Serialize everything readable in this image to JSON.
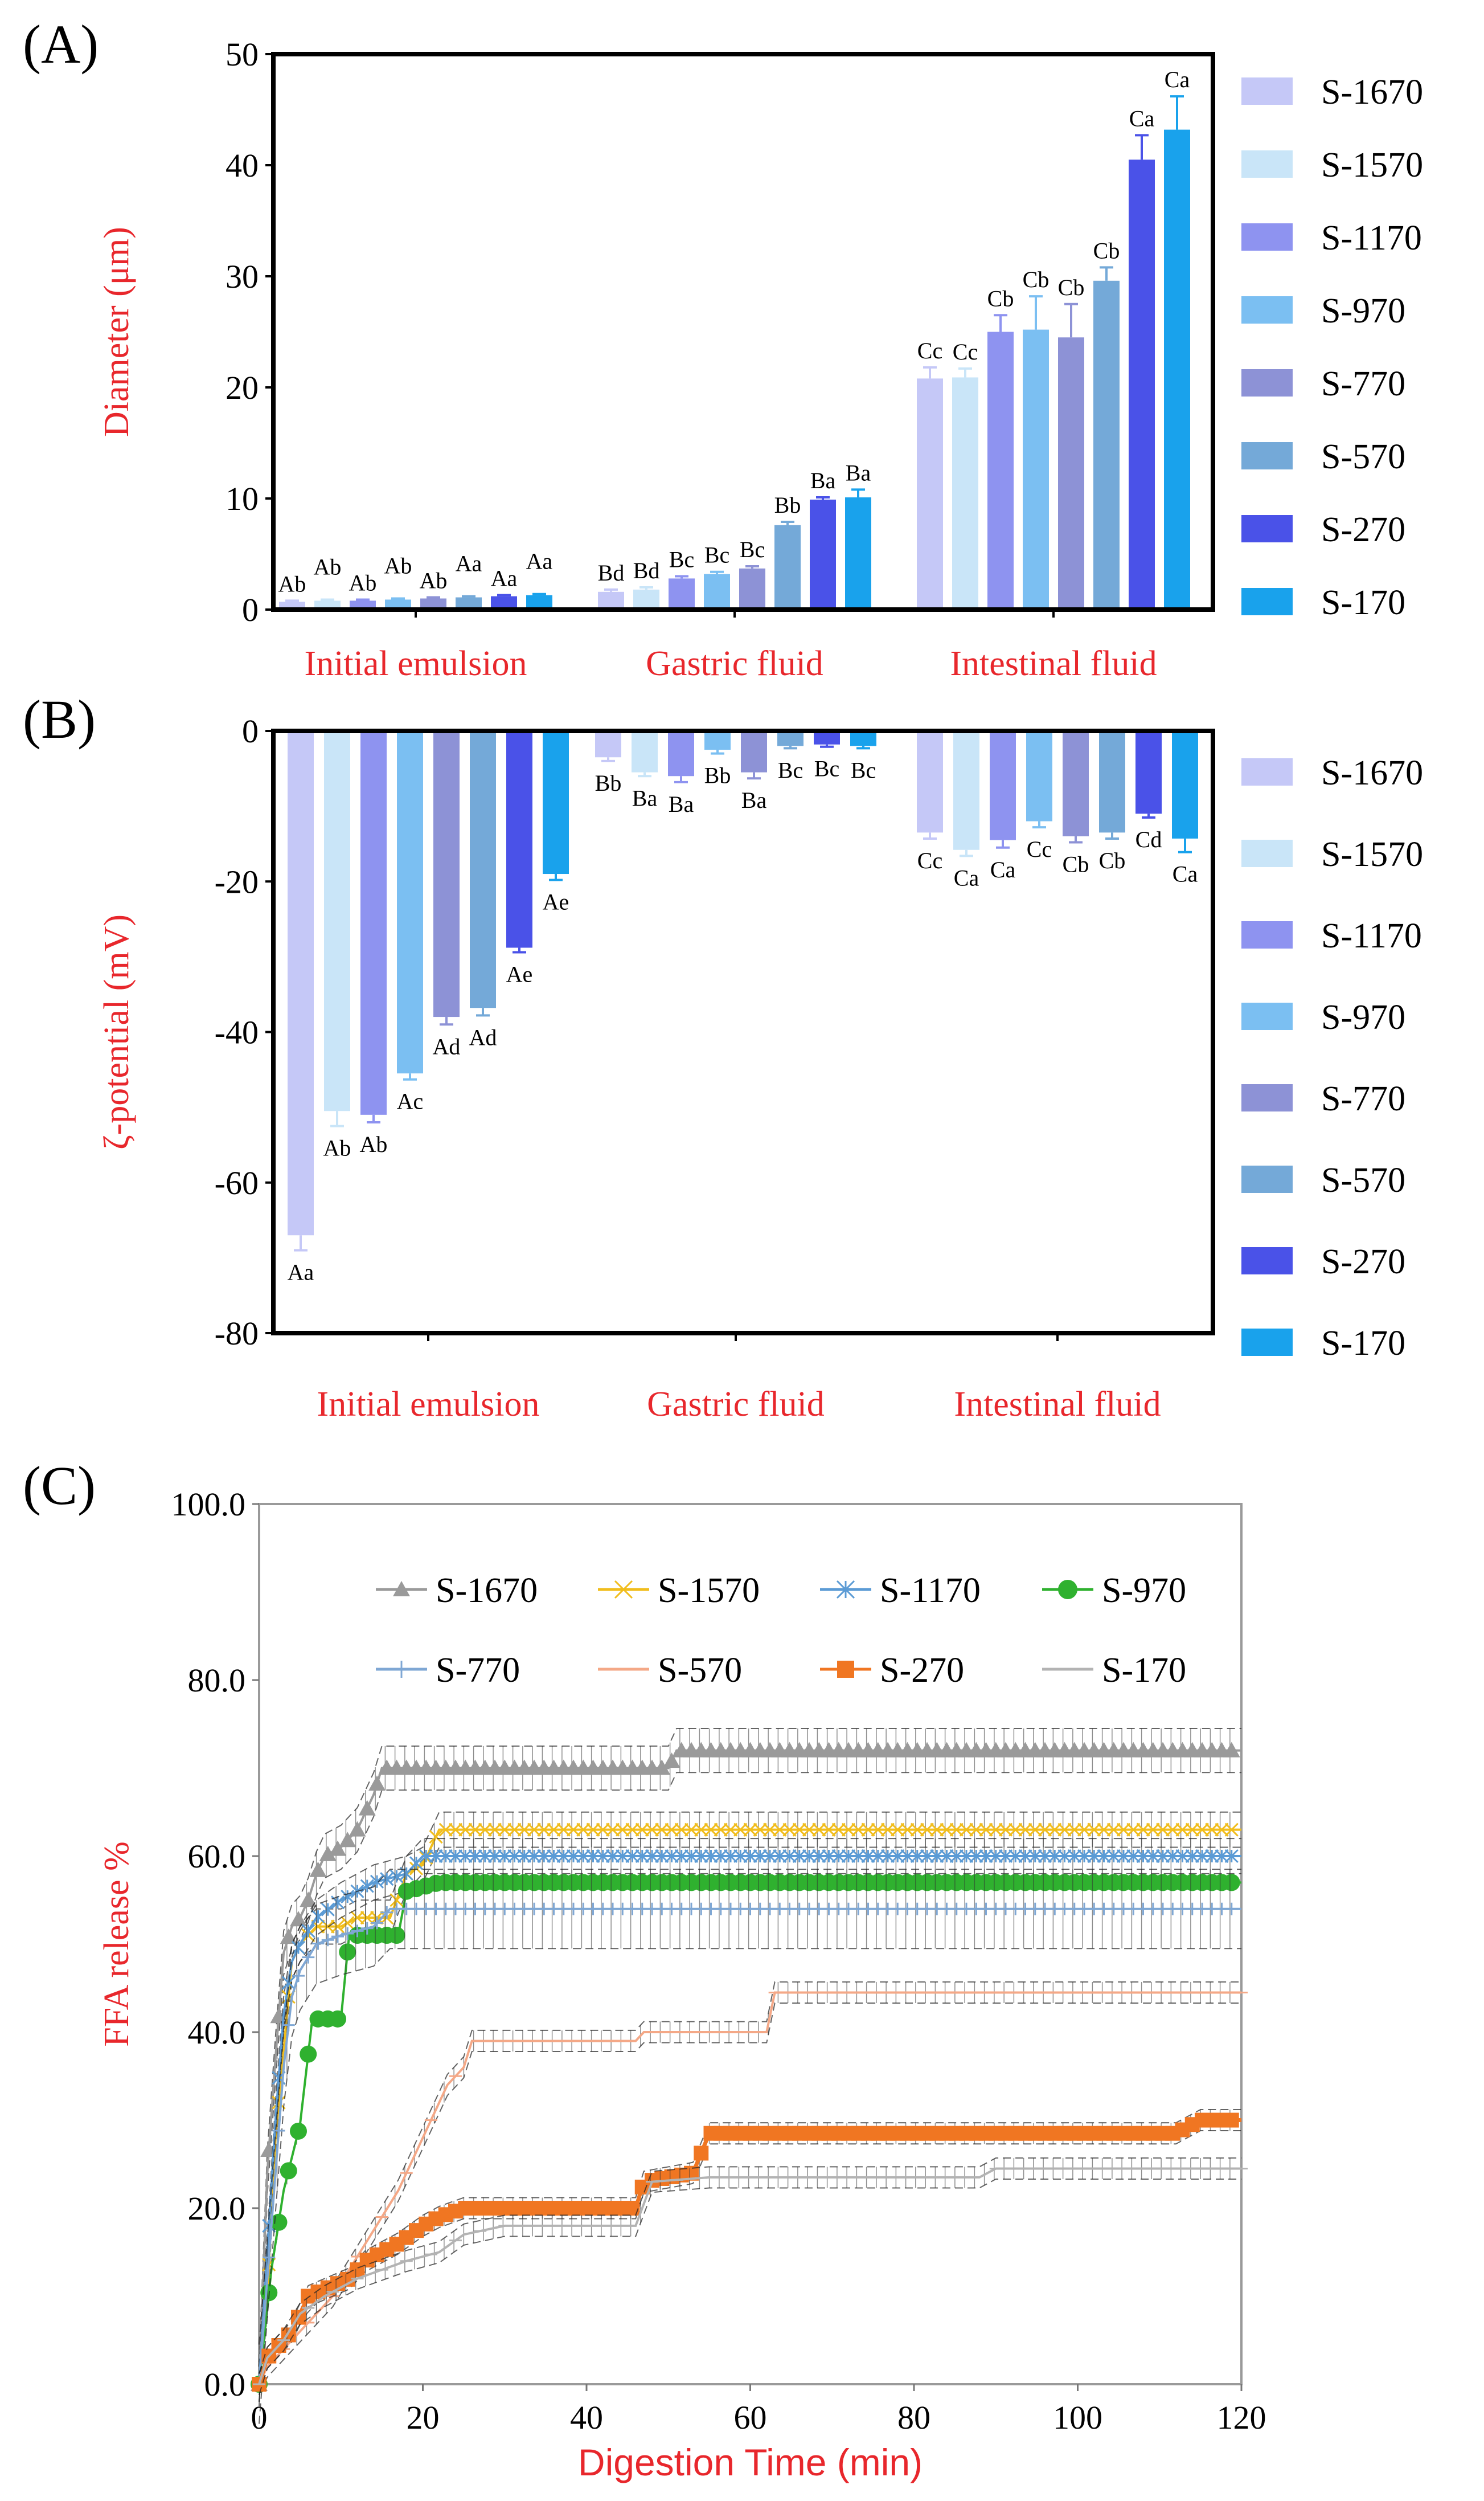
{
  "panels": {
    "A": "(A)",
    "B": "(B)",
    "C": "(C)"
  },
  "chart_data": [
    {
      "id": "A",
      "type": "bar",
      "title": "",
      "ylabel": "Diameter (μm)",
      "xlabel": "",
      "ylim": [
        0,
        50
      ],
      "yticks": [
        "0",
        "10",
        "20",
        "30",
        "40",
        "50"
      ],
      "categories": [
        "Initial emulsion",
        "Gastric fluid",
        "Intestinal fluid"
      ],
      "legend_position": "right",
      "series": [
        {
          "name": "S-1670",
          "color": "#c5c8f7",
          "values": [
            0.7,
            1.6,
            20.8
          ],
          "errors": [
            0.1,
            0.2,
            1.0
          ],
          "labels": [
            "Ab",
            "Bd",
            "Cc"
          ]
        },
        {
          "name": "S-1570",
          "color": "#c9e5f8",
          "values": [
            0.8,
            1.8,
            20.9
          ],
          "errors": [
            0.1,
            0.2,
            0.8
          ],
          "labels": [
            "Ab",
            "Bd",
            "Cc"
          ]
        },
        {
          "name": "S-1170",
          "color": "#8e93f0",
          "values": [
            0.8,
            2.8,
            25.0
          ],
          "errors": [
            0.1,
            0.2,
            1.5
          ],
          "labels": [
            "Ab",
            "Bc",
            "Cb"
          ]
        },
        {
          "name": "S-970",
          "color": "#7bbff2",
          "values": [
            0.9,
            3.2,
            25.2
          ],
          "errors": [
            0.1,
            0.2,
            3.0
          ],
          "labels": [
            "Ab",
            "Bc",
            "Cb"
          ]
        },
        {
          "name": "S-770",
          "color": "#8d92d6",
          "values": [
            1.0,
            3.7,
            24.5
          ],
          "errors": [
            0.1,
            0.2,
            3.0
          ],
          "labels": [
            "Ab",
            "Bc",
            "Cb"
          ]
        },
        {
          "name": "S-570",
          "color": "#74a9d8",
          "values": [
            1.1,
            7.6,
            29.6
          ],
          "errors": [
            0.1,
            0.3,
            1.2
          ],
          "labels": [
            "Aa",
            "Bb",
            "Cb"
          ]
        },
        {
          "name": "S-270",
          "color": "#4a52e8",
          "values": [
            1.2,
            9.9,
            40.5
          ],
          "errors": [
            0.1,
            0.2,
            2.2
          ],
          "labels": [
            "Aa",
            "Ba",
            "Ca"
          ]
        },
        {
          "name": "S-170",
          "color": "#19a2ec",
          "values": [
            1.3,
            10.1,
            43.2
          ],
          "errors": [
            0.1,
            0.7,
            3.0
          ],
          "labels": [
            "Aa",
            "Ba",
            "Ca"
          ]
        }
      ]
    },
    {
      "id": "B",
      "type": "bar",
      "title": "",
      "ylabel": "ζ-potential (mV)",
      "xlabel": "",
      "ylim": [
        -80,
        0
      ],
      "yticks": [
        "0",
        "-20",
        "-40",
        "-60",
        "-80"
      ],
      "categories": [
        "Initial emulsion",
        "Gastric fluid",
        "Intestinal fluid"
      ],
      "legend_position": "right",
      "series": [
        {
          "name": "S-1670",
          "color": "#c5c8f7",
          "values": [
            -67.0,
            -3.5,
            -13.5
          ],
          "errors": [
            2.0,
            0.5,
            0.8
          ],
          "labels": [
            "Aa",
            "Bb",
            "Cc"
          ]
        },
        {
          "name": "S-1570",
          "color": "#c9e5f8",
          "values": [
            -50.5,
            -5.5,
            -15.8
          ],
          "errors": [
            2.0,
            0.5,
            0.8
          ],
          "labels": [
            "Ab",
            "Ba",
            "Ca"
          ]
        },
        {
          "name": "S-1170",
          "color": "#8e93f0",
          "values": [
            -51.0,
            -6.0,
            -14.5
          ],
          "errors": [
            1.0,
            0.8,
            1.0
          ],
          "labels": [
            "Ab",
            "Ba",
            "Ca"
          ]
        },
        {
          "name": "S-970",
          "color": "#7bbff2",
          "values": [
            -45.5,
            -2.5,
            -12.0
          ],
          "errors": [
            0.8,
            0.5,
            0.8
          ],
          "labels": [
            "Ac",
            "Bb",
            "Cc"
          ]
        },
        {
          "name": "S-770",
          "color": "#8d92d6",
          "values": [
            -38.0,
            -5.5,
            -14.0
          ],
          "errors": [
            1.0,
            0.8,
            0.8
          ],
          "labels": [
            "Ad",
            "Ba",
            "Cb"
          ]
        },
        {
          "name": "S-570",
          "color": "#74a9d8",
          "values": [
            -36.8,
            -2.0,
            -13.5
          ],
          "errors": [
            1.0,
            0.3,
            0.8
          ],
          "labels": [
            "Ad",
            "Bc",
            "Cb"
          ]
        },
        {
          "name": "S-270",
          "color": "#4a52e8",
          "values": [
            -28.8,
            -1.8,
            -11.0
          ],
          "errors": [
            0.6,
            0.3,
            0.5
          ],
          "labels": [
            "Ae",
            "Bc",
            "Cd"
          ]
        },
        {
          "name": "S-170",
          "color": "#19a2ec",
          "values": [
            -19.0,
            -2.0,
            -14.3
          ],
          "errors": [
            0.8,
            0.3,
            1.8
          ],
          "labels": [
            "Ae",
            "Bc",
            "Ca"
          ]
        }
      ]
    },
    {
      "id": "C",
      "type": "line",
      "title": "",
      "xlabel": "Digestion Time (min)",
      "ylabel": "FFA release %",
      "xlim": [
        0,
        120
      ],
      "ylim": [
        0,
        100
      ],
      "xticks": [
        "0",
        "20",
        "40",
        "60",
        "80",
        "100",
        "120"
      ],
      "yticks": [
        "0.0",
        "20.0",
        "40.0",
        "60.0",
        "80.0",
        "100.0"
      ],
      "legend_position": "top",
      "series": [
        {
          "name": "S-1670",
          "color": "#9a9a9a",
          "marker": "triangle",
          "error": 2.5,
          "points": [
            [
              0,
              0
            ],
            [
              1,
              24
            ],
            [
              2,
              37
            ],
            [
              3,
              49
            ],
            [
              4,
              52
            ],
            [
              5,
              53
            ],
            [
              6,
              55
            ],
            [
              7,
              58
            ],
            [
              8,
              60
            ],
            [
              10,
              61
            ],
            [
              12,
              63
            ],
            [
              14,
              67
            ],
            [
              15,
              70
            ],
            [
              50,
              70
            ],
            [
              51,
              72
            ],
            [
              120,
              72
            ]
          ]
        },
        {
          "name": "S-1570",
          "color": "#f1bd1c",
          "marker": "x",
          "error": 2.0,
          "points": [
            [
              0,
              0
            ],
            [
              1,
              10
            ],
            [
              2,
              28
            ],
            [
              3,
              38
            ],
            [
              4,
              48
            ],
            [
              5,
              50
            ],
            [
              7,
              52
            ],
            [
              10,
              52
            ],
            [
              12,
              53
            ],
            [
              14,
              53
            ],
            [
              16,
              53
            ],
            [
              18,
              58
            ],
            [
              20,
              59
            ],
            [
              22,
              63
            ],
            [
              120,
              63
            ]
          ]
        },
        {
          "name": "S-1170",
          "color": "#5b9bd5",
          "marker": "star",
          "error": 2.0,
          "points": [
            [
              0,
              0
            ],
            [
              1,
              15
            ],
            [
              2,
              30
            ],
            [
              3,
              42
            ],
            [
              4,
              48
            ],
            [
              5,
              50
            ],
            [
              7,
              53
            ],
            [
              10,
              55
            ],
            [
              14,
              57
            ],
            [
              18,
              58
            ],
            [
              20,
              60
            ],
            [
              120,
              60
            ]
          ]
        },
        {
          "name": "S-970",
          "color": "#2fb12f",
          "marker": "circle",
          "error": 0.8,
          "points": [
            [
              0,
              0
            ],
            [
              1.5,
              13
            ],
            [
              3,
              22
            ],
            [
              5,
              29.5
            ],
            [
              6.5,
              41.5
            ],
            [
              10,
              41.5
            ],
            [
              11,
              51
            ],
            [
              17,
              51
            ],
            [
              18,
              56
            ],
            [
              22,
              57
            ],
            [
              120,
              57
            ]
          ]
        },
        {
          "name": "S-770",
          "color": "#7fa7d4",
          "marker": "plus",
          "error": 4.5,
          "points": [
            [
              0,
              0
            ],
            [
              1,
              12
            ],
            [
              2,
              24
            ],
            [
              3,
              36
            ],
            [
              4,
              44
            ],
            [
              5,
              47
            ],
            [
              7,
              50
            ],
            [
              10,
              51
            ],
            [
              14,
              52
            ],
            [
              16,
              54
            ],
            [
              120,
              54
            ]
          ]
        },
        {
          "name": "S-570",
          "color": "#f4a887",
          "marker": "dash",
          "error": 1.2,
          "points": [
            [
              0,
              0
            ],
            [
              1,
              2
            ],
            [
              3,
              4
            ],
            [
              5,
              6
            ],
            [
              7,
              8
            ],
            [
              9,
              10
            ],
            [
              11,
              13
            ],
            [
              13,
              16
            ],
            [
              15,
              19
            ],
            [
              17,
              22
            ],
            [
              19,
              26
            ],
            [
              21,
              30
            ],
            [
              23,
              34
            ],
            [
              25,
              36
            ],
            [
              26,
              39
            ],
            [
              46,
              39
            ],
            [
              47,
              40
            ],
            [
              62,
              40
            ],
            [
              63,
              44.5
            ],
            [
              120,
              44.5
            ]
          ]
        },
        {
          "name": "S-270",
          "color": "#f07622",
          "marker": "square",
          "error": 1.2,
          "points": [
            [
              0,
              0
            ],
            [
              1,
              3
            ],
            [
              2,
              4
            ],
            [
              4,
              6
            ],
            [
              5,
              8
            ],
            [
              6,
              10
            ],
            [
              11,
              12
            ],
            [
              13,
              14
            ],
            [
              17,
              16
            ],
            [
              20,
              18
            ],
            [
              22,
              19
            ],
            [
              25,
              20
            ],
            [
              46,
              20
            ],
            [
              47,
              23
            ],
            [
              53,
              24
            ],
            [
              55,
              28.5
            ],
            [
              112,
              28.5
            ],
            [
              115,
              30
            ],
            [
              120,
              30
            ]
          ]
        },
        {
          "name": "S-170",
          "color": "#b3b3b3",
          "marker": "dash",
          "error": 1.2,
          "points": [
            [
              0,
              0
            ],
            [
              1,
              3
            ],
            [
              3,
              5
            ],
            [
              5,
              8
            ],
            [
              8,
              10
            ],
            [
              12,
              12
            ],
            [
              15,
              13
            ],
            [
              18,
              14
            ],
            [
              22,
              15
            ],
            [
              25,
              17
            ],
            [
              30,
              18
            ],
            [
              46,
              18
            ],
            [
              48,
              23
            ],
            [
              55,
              23.5
            ],
            [
              88,
              23.5
            ],
            [
              90,
              24.5
            ],
            [
              120,
              24.5
            ]
          ]
        }
      ]
    }
  ]
}
